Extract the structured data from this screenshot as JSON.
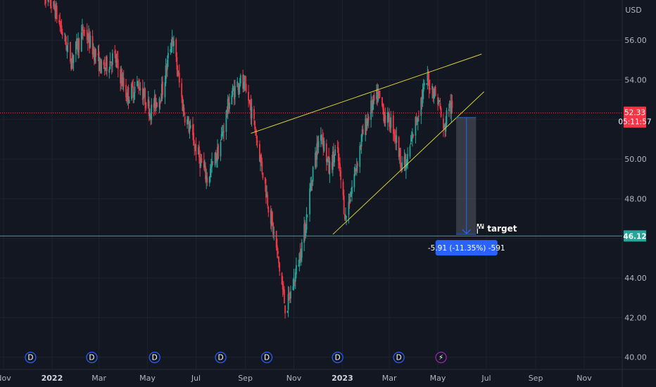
{
  "chart_data": {
    "type": "candlestick",
    "currency": "USD",
    "y_ticks": [
      "56.00",
      "54.00",
      "52.00",
      "50.00",
      "48.00",
      "46.00",
      "44.00",
      "42.00",
      "40.00"
    ],
    "ylim": [
      39.6,
      57.8
    ],
    "x_ticks": [
      {
        "label": "Nov",
        "date": "2021-11-01"
      },
      {
        "label": "2022",
        "date": "2022-01-01",
        "bold": true
      },
      {
        "label": "Mar",
        "date": "2022-03-01"
      },
      {
        "label": "May",
        "date": "2022-05-01"
      },
      {
        "label": "Jul",
        "date": "2022-07-01"
      },
      {
        "label": "Sep",
        "date": "2022-09-01"
      },
      {
        "label": "Nov",
        "date": "2022-11-01"
      },
      {
        "label": "2023",
        "date": "2023-01-01",
        "bold": true
      },
      {
        "label": "Mar",
        "date": "2023-03-01"
      },
      {
        "label": "May",
        "date": "2023-05-01"
      },
      {
        "label": "Jul",
        "date": "2023-07-01"
      },
      {
        "label": "Sep",
        "date": "2023-09-01"
      },
      {
        "label": "Nov",
        "date": "2023-11-01"
      }
    ],
    "price_path": [
      [
        "2021-12-20",
        58.5
      ],
      [
        "2022-01-05",
        57.5
      ],
      [
        "2022-01-25",
        55.0
      ],
      [
        "2022-02-10",
        56.5
      ],
      [
        "2022-02-22",
        55.5
      ],
      [
        "2022-03-05",
        54.5
      ],
      [
        "2022-03-20",
        55.2
      ],
      [
        "2022-04-05",
        53.2
      ],
      [
        "2022-04-20",
        53.8
      ],
      [
        "2022-05-05",
        52.4
      ],
      [
        "2022-05-20",
        53.5
      ],
      [
        "2022-06-01",
        56.2
      ],
      [
        "2022-06-15",
        52.5
      ],
      [
        "2022-07-01",
        50.5
      ],
      [
        "2022-07-15",
        49.0
      ],
      [
        "2022-07-30",
        50.5
      ],
      [
        "2022-08-12",
        53.0
      ],
      [
        "2022-08-25",
        54.0
      ],
      [
        "2022-09-05",
        53.0
      ],
      [
        "2022-09-12",
        51.8
      ],
      [
        "2022-09-20",
        50.0
      ],
      [
        "2022-10-01",
        47.5
      ],
      [
        "2022-10-10",
        45.5
      ],
      [
        "2022-10-22",
        42.3
      ],
      [
        "2022-11-05",
        44.5
      ],
      [
        "2022-11-15",
        46.5
      ],
      [
        "2022-11-25",
        49.5
      ],
      [
        "2022-12-05",
        51.5
      ],
      [
        "2022-12-15",
        49.5
      ],
      [
        "2022-12-25",
        50.5
      ],
      [
        "2023-01-05",
        47.0
      ],
      [
        "2023-01-15",
        49.0
      ],
      [
        "2023-01-25",
        51.0
      ],
      [
        "2023-02-05",
        52.5
      ],
      [
        "2023-02-15",
        53.2
      ],
      [
        "2023-02-25",
        52.0
      ],
      [
        "2023-03-05",
        51.8
      ],
      [
        "2023-03-15",
        50.0
      ],
      [
        "2023-03-22",
        49.6
      ],
      [
        "2023-04-01",
        51.5
      ],
      [
        "2023-04-10",
        53.0
      ],
      [
        "2023-04-18",
        54.0
      ],
      [
        "2023-04-25",
        53.5
      ],
      [
        "2023-05-03",
        52.8
      ],
      [
        "2023-05-08",
        51.3
      ],
      [
        "2023-05-15",
        52.8
      ],
      [
        "2023-05-20",
        52.33
      ]
    ],
    "series": [
      {
        "name": "",
        "points": [
          {
            "x": "2022-09-08",
            "y": 51.3
          },
          {
            "x": "2023-06-25",
            "y": 55.3
          }
        ]
      },
      {
        "name": "",
        "points": [
          {
            "x": "2022-12-20",
            "y": 46.2
          },
          {
            "x": "2023-06-28",
            "y": 53.4
          }
        ]
      }
    ],
    "horizontal_lines": [
      {
        "y": 46.12,
        "color": "#26a69a",
        "style": "solid",
        "label": "46.12",
        "label_bg": "#26a69a"
      },
      {
        "y": 52.33,
        "color": "#f23645",
        "style": "dotted"
      }
    ],
    "last_price": {
      "value": "52.33",
      "countdown": "05:11:57",
      "y": 52.33,
      "color": "#f23645"
    },
    "measure": {
      "x": "2023-06-06",
      "x_start": "2023-05-24",
      "x_end": "2023-06-18",
      "y_from": 52.1,
      "y_to": 46.2,
      "label": "-5.91 (-11.35%) -591"
    },
    "target_label": "target",
    "dividend_markers": [
      {
        "date": "2021-12-05",
        "label": "D"
      },
      {
        "date": "2022-02-20",
        "label": "D"
      },
      {
        "date": "2022-05-10",
        "label": "D"
      },
      {
        "date": "2022-08-01",
        "label": "D"
      },
      {
        "date": "2022-09-28",
        "label": "D"
      },
      {
        "date": "2022-12-26",
        "label": "D"
      },
      {
        "date": "2023-03-13",
        "label": "D"
      },
      {
        "date": "2023-05-05",
        "label": "⚡",
        "color": "#9c27b0"
      }
    ],
    "colors": {
      "background": "#131722",
      "grid": "#1e222d",
      "up": "#26a69a",
      "down": "#f23645",
      "trendline": "#d4cf3a",
      "measure": "#2962ff",
      "marker": "#2962ff"
    }
  }
}
